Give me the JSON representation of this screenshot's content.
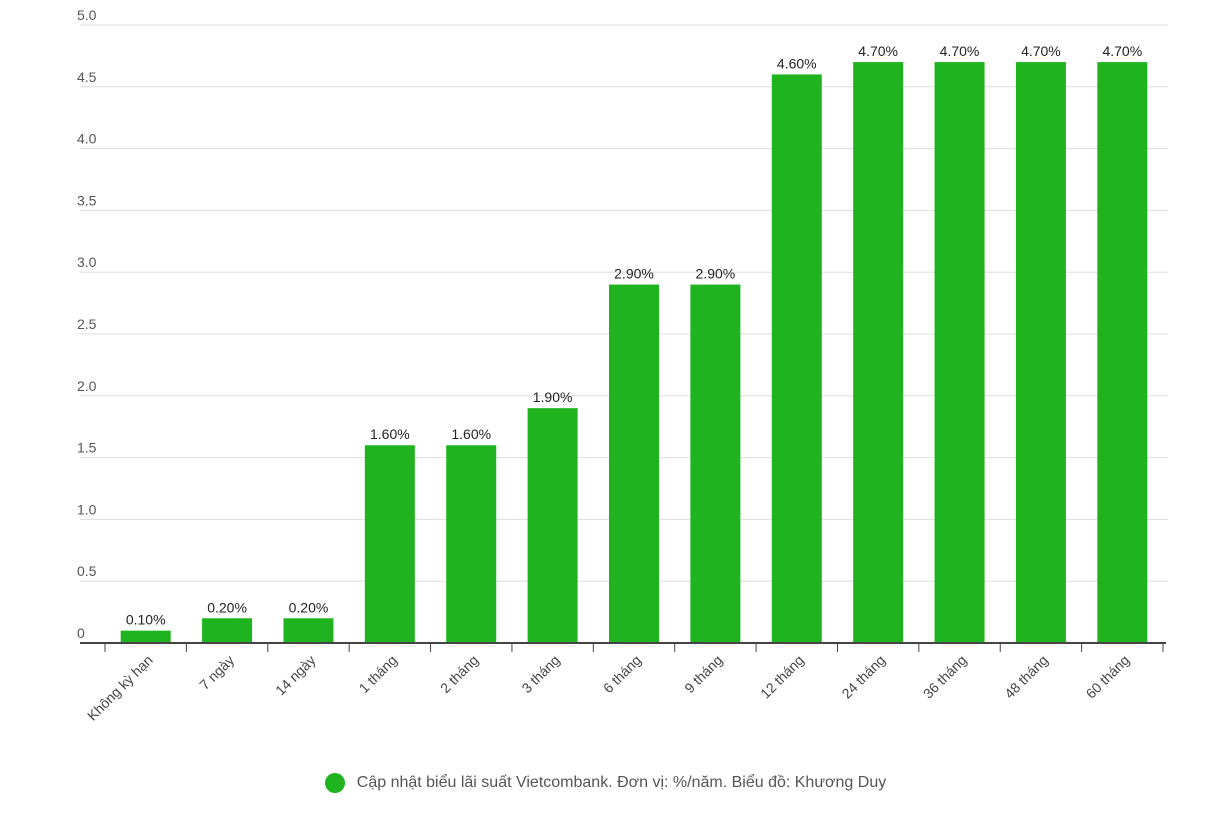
{
  "chart_data": {
    "type": "bar",
    "categories": [
      "Không kỳ hạn",
      "7 ngày",
      "14 ngày",
      "1 tháng",
      "2 tháng",
      "3 tháng",
      "6 tháng",
      "9 tháng",
      "12 tháng",
      "24 tháng",
      "36 tháng",
      "48 tháng",
      "60 tháng"
    ],
    "values": [
      0.1,
      0.2,
      0.2,
      1.6,
      1.6,
      1.9,
      2.9,
      2.9,
      4.6,
      4.7,
      4.7,
      4.7,
      4.7
    ],
    "data_labels": [
      "0.10%",
      "0.20%",
      "0.20%",
      "1.60%",
      "1.60%",
      "1.90%",
      "2.90%",
      "2.90%",
      "4.60%",
      "4.70%",
      "4.70%",
      "4.70%",
      "4.70%"
    ],
    "yticks": [
      "0",
      "0.5",
      "1.0",
      "1.5",
      "2.0",
      "2.5",
      "3.0",
      "3.5",
      "4.0",
      "4.5",
      "5.0"
    ],
    "ylim": [
      0,
      5
    ],
    "grid": true,
    "color": "#1fb41f",
    "legend": {
      "position": "bottom",
      "label": "Cập nhật biểu lãi suất Vietcombank. Đơn vị: %/năm. Biểu đồ: Khương Duy"
    }
  }
}
